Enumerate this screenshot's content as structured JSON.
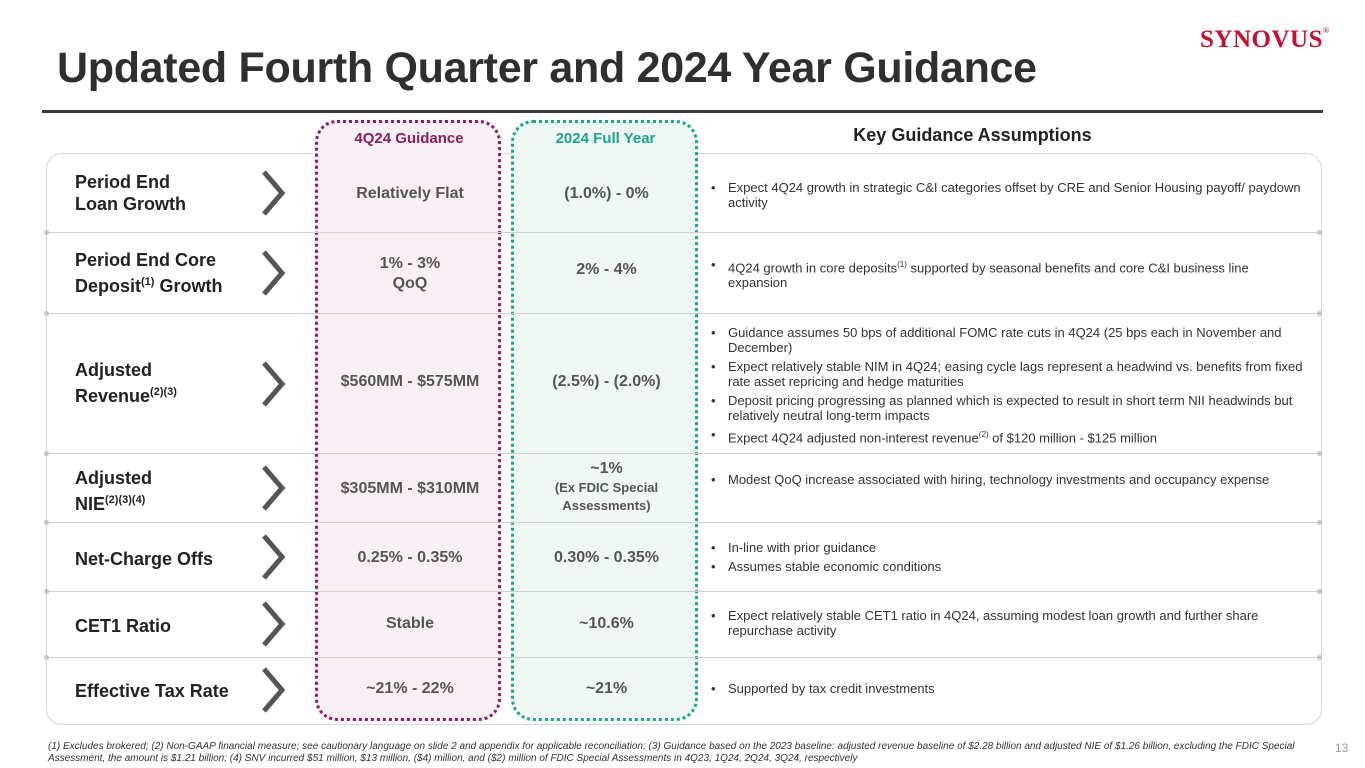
{
  "brand": {
    "logo_text": "SYNOVUS",
    "logo_mark": "®",
    "color": "#c8102e"
  },
  "title": "Updated Fourth Quarter and 2024 Year Guidance",
  "headers": {
    "q": "4Q24 Guidance",
    "y": "2024 Full Year",
    "k": "Key Guidance Assumptions"
  },
  "colors": {
    "q_accent": "#8e1e5e",
    "y_accent": "#1aa68a"
  },
  "rows": [
    {
      "label1": "Period End",
      "label2": "Loan Growth",
      "q1": "Relatively Flat",
      "y1": "(1.0%) - 0%",
      "bullets": [
        {
          "text": "Expect 4Q24 growth in strategic C&I categories offset by CRE and Senior Housing payoff/ paydown activity"
        }
      ]
    },
    {
      "label1": "Period End Core",
      "label2a": "Deposit",
      "label2sup": "(1)",
      "label2b": " Growth",
      "q1": "1% - 3%",
      "q2": "QoQ",
      "y1": "2% - 4%",
      "bullets": [
        {
          "a": "4Q24 growth in core deposits",
          "sup": "(1)",
          "b": " supported by seasonal benefits and core C&I business line expansion"
        }
      ]
    },
    {
      "label1": "Adjusted",
      "label2a": "Revenue",
      "label2sup": "(2)(3)",
      "q1": "$560MM - $575MM",
      "y1": "(2.5%) - (2.0%)",
      "bullets": [
        {
          "text": "Guidance assumes 50 bps of additional FOMC rate cuts in 4Q24 (25 bps each in November and December)"
        },
        {
          "text": "Expect relatively stable NIM in 4Q24; easing cycle lags represent a headwind vs. benefits from fixed rate asset repricing and hedge maturities"
        },
        {
          "text": "Deposit pricing progressing as planned which is expected to result in short term NII headwinds but relatively neutral long-term impacts"
        },
        {
          "a": "Expect 4Q24 adjusted non-interest revenue",
          "sup": "(2)",
          "b": " of $120 million - $125 million"
        }
      ]
    },
    {
      "label1": "Adjusted",
      "label2a": "NIE",
      "label2sup": "(2)(3)(4)",
      "q1": "$305MM - $310MM",
      "y1": "~1%",
      "y2": "(Ex FDIC Special",
      "y3": "Assessments)",
      "bullets": [
        {
          "text": "Modest QoQ increase associated with hiring, technology investments and occupancy expense"
        }
      ]
    },
    {
      "label1": "Net-Charge Offs",
      "q1": "0.25% - 0.35%",
      "y1": "0.30% - 0.35%",
      "bullets": [
        {
          "text": "In-line with prior guidance"
        },
        {
          "text": "Assumes stable economic conditions"
        }
      ]
    },
    {
      "label1": "CET1 Ratio",
      "q1": "Stable",
      "y1": "~10.6%",
      "bullets": [
        {
          "text": "Expect relatively stable CET1 ratio in 4Q24, assuming modest loan growth and further share repurchase activity"
        }
      ]
    },
    {
      "label1": "Effective Tax Rate",
      "q1": "~21% - 22%",
      "y1": "~21%",
      "bullets": [
        {
          "text": "Supported by tax credit investments"
        }
      ]
    }
  ],
  "footnote": "(1) Excludes brokered; (2) Non-GAAP financial measure; see cautionary language on slide 2 and appendix for applicable reconciliation; (3) Guidance based on the 2023 baseline: adjusted revenue baseline of $2.28 billion and adjusted NIE of $1.26 billion, excluding the FDIC Special Assessment, the amount is $1.21 billion; (4) SNV incurred $51 million, $13 million, ($4) million, and ($2) million of FDIC Special Assessments in 4Q23, 1Q24, 2Q24, 3Q24, respectively",
  "page_number": "13"
}
